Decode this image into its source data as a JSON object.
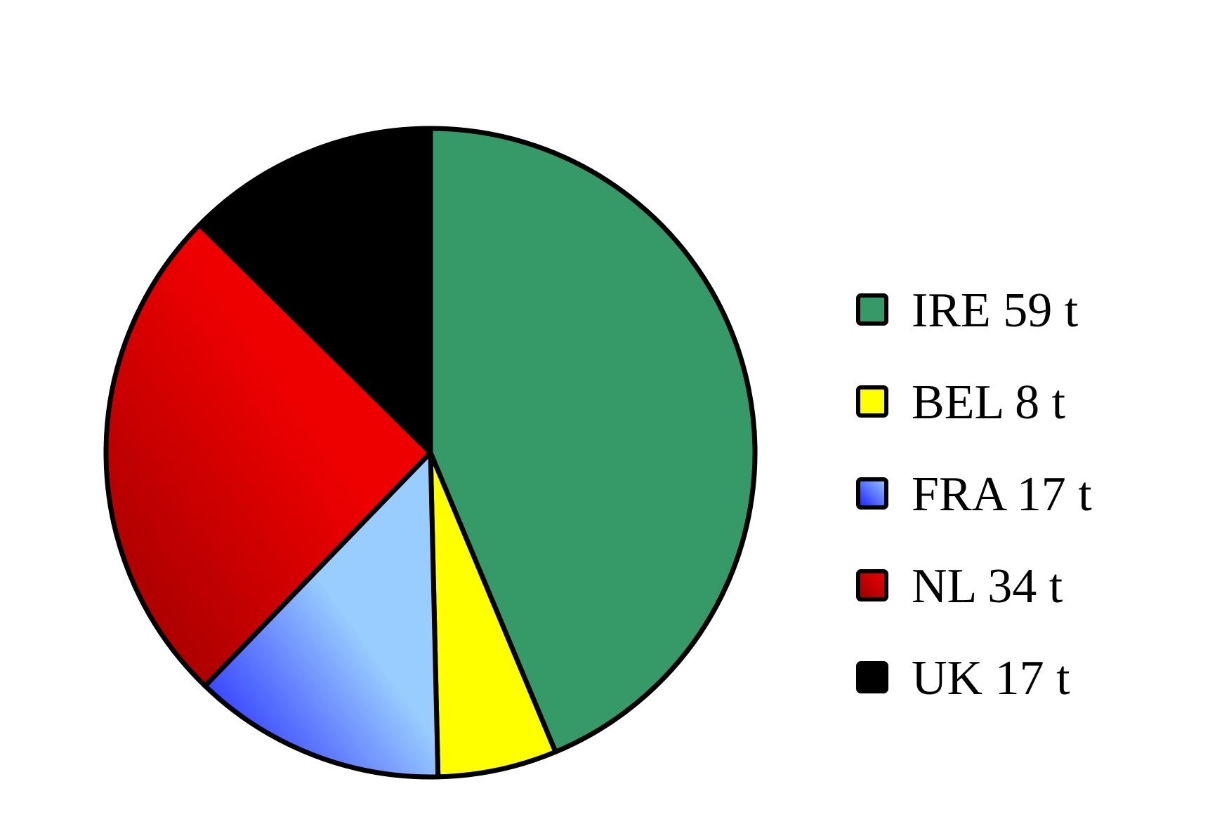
{
  "chart_data": {
    "type": "pie",
    "title": "",
    "start_angle_deg": 0,
    "direction": "clockwise",
    "legend_position": "right",
    "slices": [
      {
        "label": "IRE 59 t",
        "category": "IRE",
        "value": 59,
        "unit": "t",
        "color": "#359a68"
      },
      {
        "label": "BEL 8 t",
        "category": "BEL",
        "value": 8,
        "unit": "t",
        "color": "#ffff00"
      },
      {
        "label": "FRA 17 t",
        "category": "FRA",
        "value": 17,
        "unit": "t",
        "color": "#99ccff",
        "gradient_to": "#1a1aff"
      },
      {
        "label": "NL 34 t",
        "category": "NL",
        "value": 34,
        "unit": "t",
        "color": "#ee0000",
        "gradient_to": "#990000"
      },
      {
        "label": "UK 17 t",
        "category": "UK",
        "value": 17,
        "unit": "t",
        "color": "#000000"
      }
    ]
  }
}
